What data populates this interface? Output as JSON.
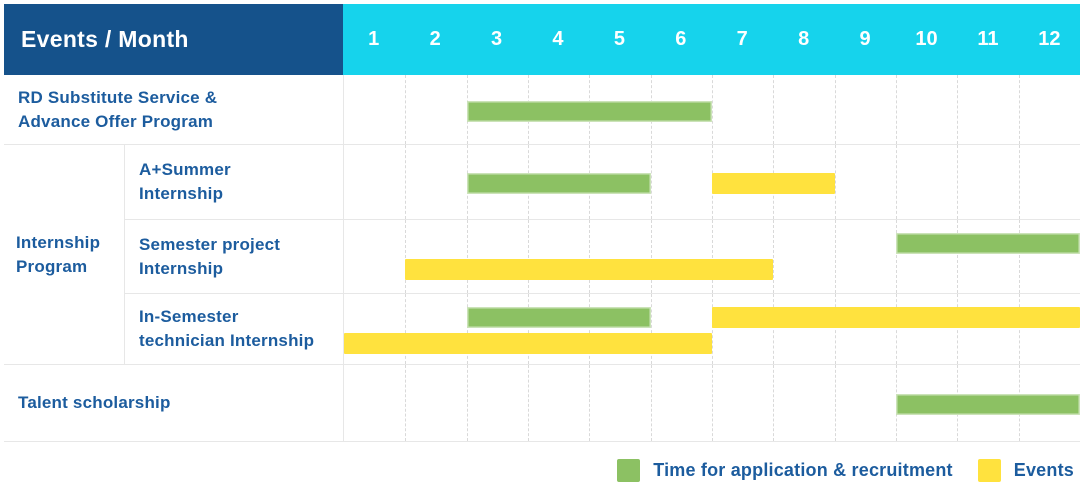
{
  "header": {
    "row_label": "Events / Month",
    "months": [
      "1",
      "2",
      "3",
      "4",
      "5",
      "6",
      "7",
      "8",
      "9",
      "10",
      "11",
      "12"
    ]
  },
  "group_label_lines": [
    "Internship",
    "Program"
  ],
  "rows": [
    {
      "group": null,
      "label_lines": [
        "RD Substitute Service &",
        "Advance Offer Program"
      ]
    },
    {
      "group": "Internship Program",
      "label_lines": [
        "A+Summer",
        "Internship"
      ]
    },
    {
      "group": "Internship Program",
      "label_lines": [
        "Semester project",
        "Internship"
      ]
    },
    {
      "group": "Internship Program",
      "label_lines": [
        "In-Semester",
        "technician Internship"
      ]
    },
    {
      "group": null,
      "label_lines": [
        "Talent scholarship"
      ]
    }
  ],
  "legend": {
    "items": [
      {
        "label": "Time for application & recruitment",
        "color": "#8cc163",
        "key": "green"
      },
      {
        "label": "Events",
        "color": "#ffe23e",
        "key": "yellow"
      }
    ]
  },
  "colors": {
    "header_bg": "#15528b",
    "months_bg": "#16d3ec",
    "label_text": "#1c5c9e",
    "green": "#8cc163",
    "yellow": "#ffe23e",
    "grid_border": "#e7e7e7",
    "month_divider": "#d9d9d9"
  },
  "chart_data": {
    "type": "bar",
    "subtype": "gantt-timeline",
    "title": "Events / Month",
    "xlabel": "Month",
    "ylabel": "Events",
    "x_axis": {
      "ticks": [
        1,
        2,
        3,
        4,
        5,
        6,
        7,
        8,
        9,
        10,
        11,
        12
      ],
      "range": [
        1,
        12
      ]
    },
    "grid": "dashed-vertical-month-dividers",
    "legend_position": "bottom-right",
    "legend_entries": [
      "Time for application & recruitment",
      "Events"
    ],
    "rows": [
      {
        "group": null,
        "task": "RD Substitute Service & Advance Offer Program",
        "bars": [
          {
            "series": "Time for application & recruitment",
            "color_key": "green",
            "start_month": 3,
            "end_month": 6,
            "lane": "center"
          }
        ]
      },
      {
        "group": "Internship Program",
        "task": "A+Summer Internship",
        "bars": [
          {
            "series": "Time for application & recruitment",
            "color_key": "green",
            "start_month": 3,
            "end_month": 5,
            "lane": "center"
          },
          {
            "series": "Events",
            "color_key": "yellow",
            "start_month": 7,
            "end_month": 8,
            "lane": "center"
          }
        ]
      },
      {
        "group": "Internship Program",
        "task": "Semester project Internship",
        "bars": [
          {
            "series": "Time for application & recruitment",
            "color_key": "green",
            "start_month": 10,
            "end_month": 12,
            "lane": "top"
          },
          {
            "series": "Events",
            "color_key": "yellow",
            "start_month": 2,
            "end_month": 7,
            "lane": "bottom"
          }
        ]
      },
      {
        "group": "Internship Program",
        "task": "In-Semester technician Internship",
        "bars": [
          {
            "series": "Time for application & recruitment",
            "color_key": "green",
            "start_month": 3,
            "end_month": 5,
            "lane": "top"
          },
          {
            "series": "Events",
            "color_key": "yellow",
            "start_month": 7,
            "end_month": 12,
            "lane": "top"
          },
          {
            "series": "Events",
            "color_key": "yellow",
            "start_month": 1,
            "end_month": 6,
            "lane": "bottom"
          }
        ]
      },
      {
        "group": null,
        "task": "Talent scholarship",
        "bars": [
          {
            "series": "Time for application & recruitment",
            "color_key": "green",
            "start_month": 10,
            "end_month": 12,
            "lane": "center"
          }
        ]
      }
    ]
  }
}
